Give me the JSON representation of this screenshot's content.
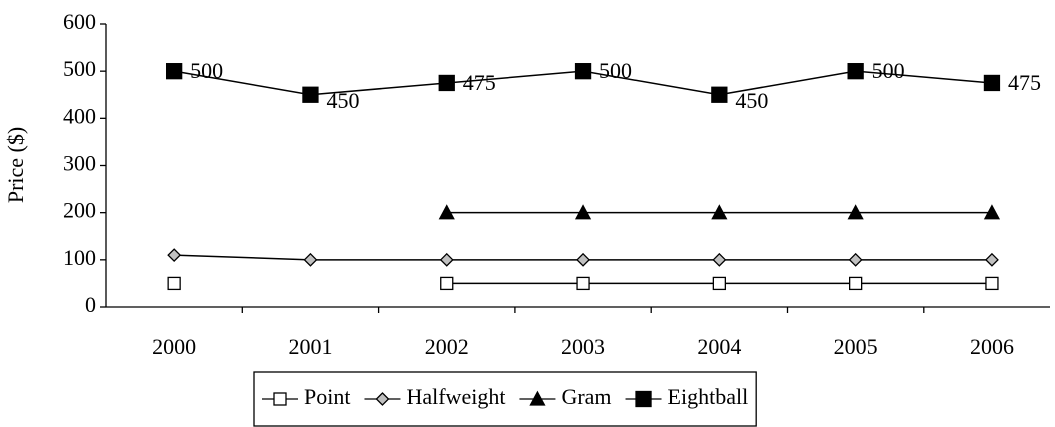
{
  "chart_data": {
    "type": "line",
    "y_label": "Price ($)",
    "categories": [
      "2000",
      "2001",
      "2002",
      "2003",
      "2004",
      "2005",
      "2006"
    ],
    "series": [
      {
        "name": "Point",
        "color": "#000000",
        "marker": "square",
        "marker_fill": "#ffffff",
        "values": [
          50,
          null,
          50,
          50,
          50,
          50,
          50
        ]
      },
      {
        "name": "Halfweight",
        "color": "#000000",
        "marker": "diamond",
        "marker_fill": "#c0c0c0",
        "values": [
          110,
          100,
          100,
          100,
          100,
          100,
          100
        ]
      },
      {
        "name": "Gram",
        "color": "#000000",
        "marker": "triangle",
        "marker_fill": "#000000",
        "values": [
          null,
          null,
          200,
          200,
          200,
          200,
          200
        ]
      },
      {
        "name": "Eightball",
        "color": "#000000",
        "marker": "square-large",
        "marker_fill": "#000000",
        "values": [
          500,
          450,
          475,
          500,
          450,
          500,
          475
        ],
        "data_labels": true
      }
    ],
    "ylim": [
      0,
      600
    ],
    "yticks": [
      0,
      100,
      200,
      300,
      400,
      500,
      600
    ],
    "grid": false,
    "legend": "bottom"
  }
}
